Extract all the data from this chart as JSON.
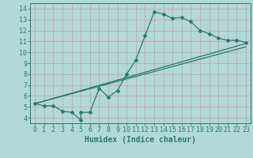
{
  "xlabel": "Humidex (Indice chaleur)",
  "background_color": "#b2d8d8",
  "grid_color": "#c8c8c8",
  "line_color": "#2a7a6a",
  "xlim": [
    -0.5,
    23.5
  ],
  "ylim": [
    3.5,
    14.5
  ],
  "xticks": [
    0,
    1,
    2,
    3,
    4,
    5,
    6,
    7,
    8,
    9,
    10,
    11,
    12,
    13,
    14,
    15,
    16,
    17,
    18,
    19,
    20,
    21,
    22,
    23
  ],
  "yticks": [
    4,
    5,
    6,
    7,
    8,
    9,
    10,
    11,
    12,
    13,
    14
  ],
  "curve_x": [
    0,
    1,
    2,
    3,
    4,
    5,
    5,
    6,
    7,
    8,
    9,
    10,
    11,
    12,
    13,
    14,
    15,
    16,
    17,
    18,
    19,
    20,
    21,
    22,
    23
  ],
  "curve_y": [
    5.3,
    5.1,
    5.1,
    4.6,
    4.5,
    3.8,
    4.5,
    4.5,
    6.7,
    5.9,
    6.5,
    8.0,
    9.3,
    11.5,
    13.7,
    13.5,
    13.1,
    13.2,
    12.8,
    12.0,
    11.7,
    11.3,
    11.1,
    11.1,
    10.9
  ],
  "line1_x": [
    0,
    23
  ],
  "line1_y": [
    5.3,
    10.5
  ],
  "line2_x": [
    0,
    23
  ],
  "line2_y": [
    5.3,
    10.8
  ],
  "fontsize_label": 7,
  "fontsize_tick": 6,
  "marker": "D",
  "markersize": 2.0,
  "linewidth": 0.9
}
